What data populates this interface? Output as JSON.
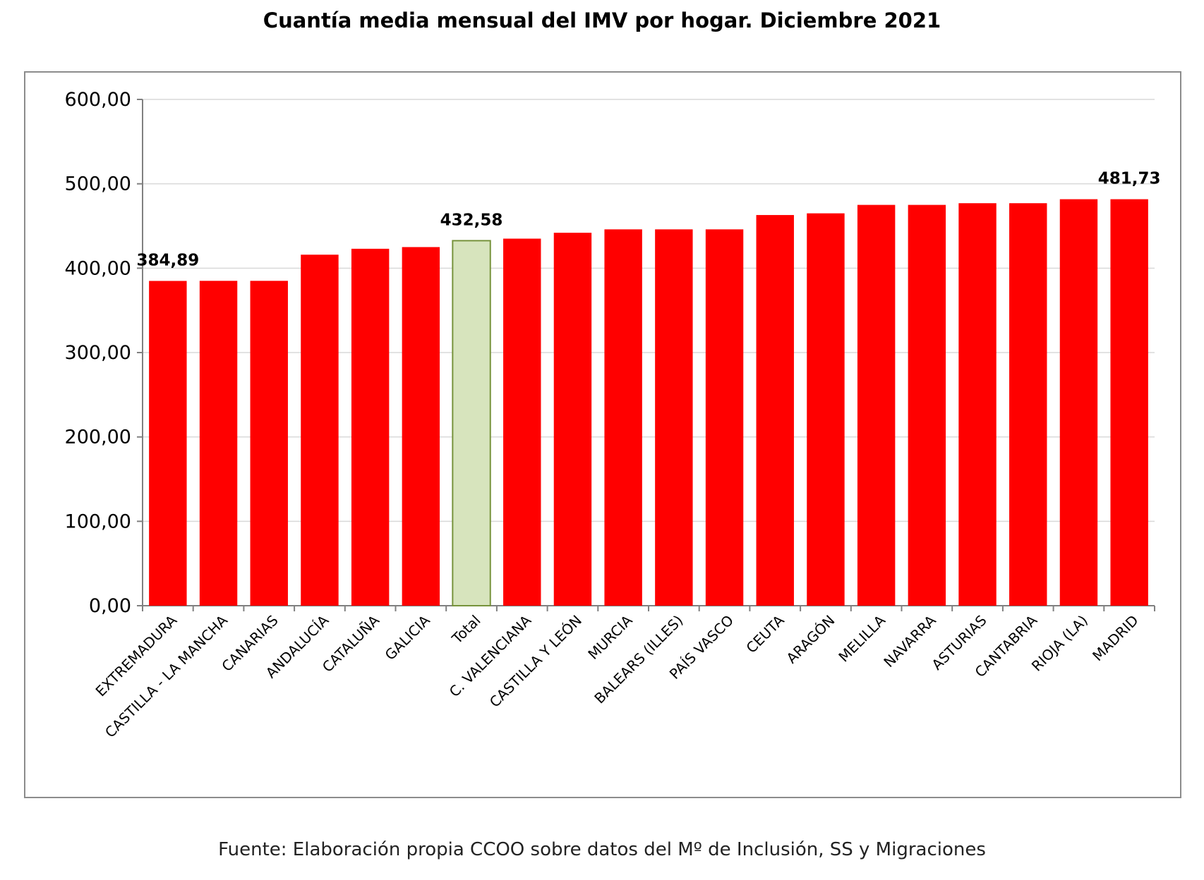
{
  "chart_data": {
    "type": "bar",
    "title": "Cuantía media mensual del IMV por hogar. Diciembre 2021",
    "source": "Fuente: Elaboración propia CCOO sobre datos del Mº de Inclusión, SS y Migraciones",
    "xlabel": "",
    "ylabel": "",
    "ylim": [
      0,
      600
    ],
    "yticks": [
      "0,00",
      "100,00",
      "200,00",
      "300,00",
      "400,00",
      "500,00",
      "600,00"
    ],
    "ytick_values": [
      0,
      100,
      200,
      300,
      400,
      500,
      600
    ],
    "grid": true,
    "legend": "none",
    "colors": {
      "bar": "#ff0000",
      "highlight_bar": "#d7e4bd",
      "highlight_border": "#77933c",
      "grid": "#d9d9d9",
      "axis": "#808080"
    },
    "highlight_category": "Total",
    "categories": [
      "EXTREMADURA",
      "CASTILLA - LA MANCHA",
      "CANARIAS",
      "ANDALUCÍA",
      "CATALUÑA",
      "GALICIA",
      "Total",
      "C. VALENCIANA",
      "CASTILLA Y LEÓN",
      "MURCIA",
      "BALEARS (ILLES)",
      "PAÍS VASCO",
      "CEUTA",
      "ARAGÓN",
      "MELILLA",
      "NAVARRA",
      "ASTURIAS",
      "CANTABRIA",
      "RIOJA (LA)",
      "MADRID"
    ],
    "values": [
      384.89,
      385.0,
      385.0,
      416.0,
      423.0,
      425.0,
      432.58,
      435.0,
      442.0,
      446.0,
      446.0,
      446.0,
      463.0,
      465.0,
      475.0,
      475.0,
      477.0,
      477.0,
      481.73,
      481.73
    ],
    "data_labels": [
      {
        "category": "EXTREMADURA",
        "text": "384,89"
      },
      {
        "category": "Total",
        "text": "432,58"
      },
      {
        "category": "MADRID",
        "text": "481,73"
      }
    ]
  }
}
